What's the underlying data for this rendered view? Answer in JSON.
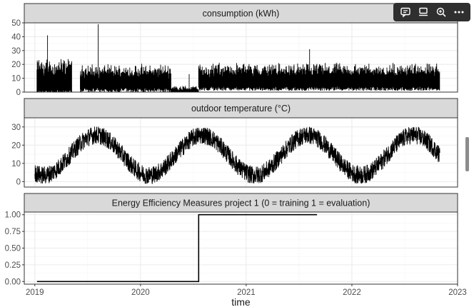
{
  "chart_data": [
    {
      "type": "line",
      "title": "consumption (kWh)",
      "ylim": [
        0,
        50
      ],
      "yticks": [
        0,
        10,
        20,
        30,
        40,
        50
      ],
      "ytick_labels": [
        "0",
        "10",
        "20",
        "30",
        "40",
        "50"
      ],
      "series": [
        {
          "name": "consumption (kWh)",
          "segments": [
            {
              "start": 2019.02,
              "end": 2019.35,
              "base": 4,
              "amp": [
                10,
                22
              ],
              "peak": {
                "x": 2019.12,
                "y": 41
              }
            },
            {
              "start": 2019.43,
              "end": 2020.29,
              "base": 5,
              "amp": [
                7,
                16
              ],
              "peak": {
                "x": 2019.6,
                "y": 49
              }
            },
            {
              "start": 2020.29,
              "end": 2020.55,
              "base": 1,
              "amp": [
                0,
                4
              ],
              "peak": {
                "x": 2020.46,
                "y": 13
              }
            },
            {
              "start": 2020.55,
              "end": 2022.83,
              "base": 6,
              "amp": [
                7,
                16
              ],
              "peak": {
                "x": 2021.6,
                "y": 31
              }
            }
          ]
        }
      ]
    },
    {
      "type": "line",
      "title": "outdoor temperature (°C)",
      "ylim": [
        -3,
        35
      ],
      "yticks": [
        0,
        10,
        20,
        30
      ],
      "ytick_labels": [
        "0",
        "10",
        "20",
        "30"
      ],
      "series": [
        {
          "name": "outdoor temperature (°C)",
          "start": 2019.0,
          "end": 2022.83,
          "mean": 14.5,
          "seasonal_amplitude": 11,
          "peak_phase": 0.58,
          "noise": 5
        }
      ]
    },
    {
      "type": "line",
      "title": "Energy Efficiency Measures project 1 (0 = training 1 = evaluation)",
      "ylim": [
        -0.04,
        1.04
      ],
      "yticks": [
        0,
        0.25,
        0.5,
        0.75,
        1.0
      ],
      "ytick_labels": [
        "0.00",
        "0.25",
        "0.50",
        "0.75",
        "1.00"
      ],
      "series": [
        {
          "name": "project 1",
          "x": [
            2019.02,
            2020.55,
            2020.55,
            2021.67
          ],
          "y": [
            0,
            0,
            1,
            1
          ]
        }
      ]
    }
  ],
  "x_axis": {
    "label": "time",
    "range": [
      2018.9,
      2023.0
    ],
    "ticks": [
      2019,
      2020,
      2021,
      2022,
      2023
    ],
    "tick_labels": [
      "2019",
      "2020",
      "2021",
      "2022",
      "2023"
    ]
  },
  "toolbar": {
    "buttons": [
      {
        "name": "comment-icon"
      },
      {
        "name": "display-icon"
      },
      {
        "name": "zoom-icon"
      },
      {
        "name": "more-icon"
      }
    ]
  },
  "colors": {
    "strip_bg": "#d9d9d9",
    "strip_border": "#333333",
    "panel_border": "#333333",
    "grid_major": "#ebebeb",
    "grid_minor": "#f5f5f5",
    "line": "#000000",
    "text": "#1a1a1a",
    "tick_text": "#4d4d4d"
  }
}
